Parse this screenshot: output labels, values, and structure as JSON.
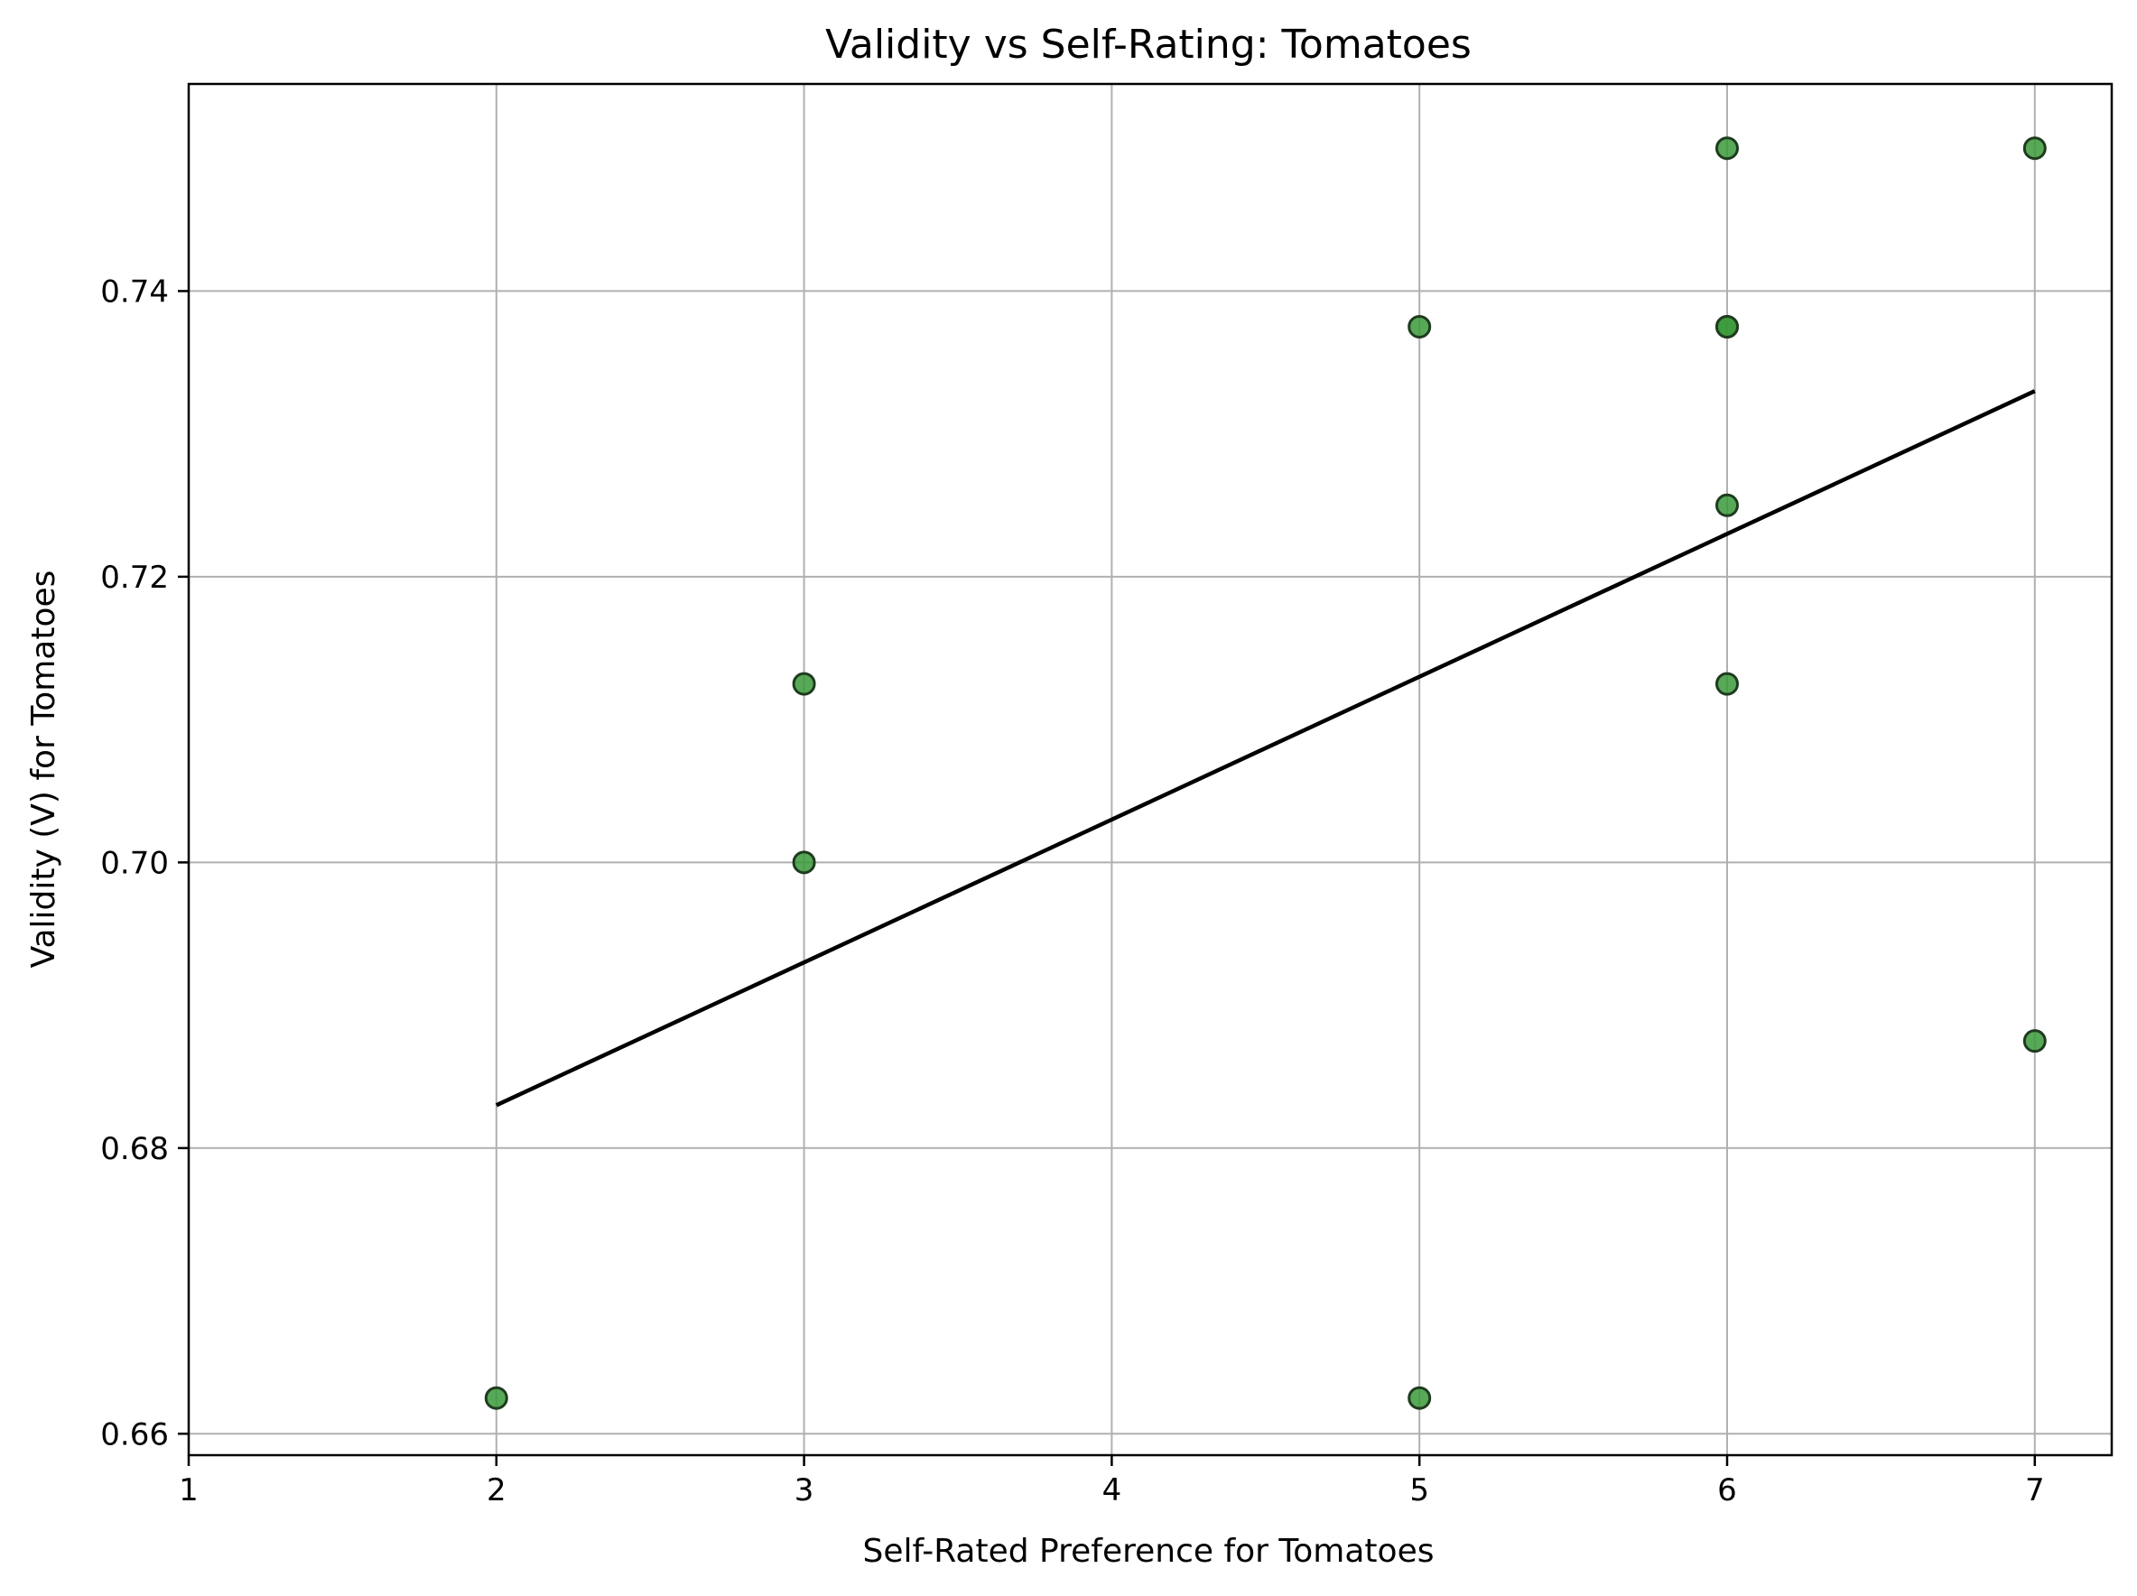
{
  "chart_data": {
    "type": "scatter",
    "title": "Validity vs Self-Rating: Tomatoes",
    "xlabel": "Self-Rated Preference for Tomatoes",
    "ylabel": "Validity (V) for Tomatoes",
    "xlim": [
      1,
      7.25
    ],
    "ylim": [
      0.6585,
      0.7545
    ],
    "xticks": [
      1,
      2,
      3,
      4,
      5,
      6,
      7
    ],
    "xtick_labels": [
      "1",
      "2",
      "3",
      "4",
      "5",
      "6",
      "7"
    ],
    "yticks": [
      0.66,
      0.68,
      0.7,
      0.72,
      0.74
    ],
    "ytick_labels": [
      "0.66",
      "0.68",
      "0.70",
      "0.72",
      "0.74"
    ],
    "grid": true,
    "points": [
      {
        "x": 2,
        "y": 0.6625
      },
      {
        "x": 3,
        "y": 0.7125
      },
      {
        "x": 3,
        "y": 0.7
      },
      {
        "x": 5,
        "y": 0.7375
      },
      {
        "x": 5,
        "y": 0.6625
      },
      {
        "x": 6,
        "y": 0.75
      },
      {
        "x": 6,
        "y": 0.7375
      },
      {
        "x": 6,
        "y": 0.7375
      },
      {
        "x": 6,
        "y": 0.725
      },
      {
        "x": 6,
        "y": 0.7125
      },
      {
        "x": 7,
        "y": 0.75
      },
      {
        "x": 7,
        "y": 0.6875
      }
    ],
    "trendline": {
      "x": [
        2,
        7
      ],
      "y": [
        0.683,
        0.733
      ]
    },
    "colors": {
      "point_fill": "#3a9a3a",
      "point_edge": "#1f3b1f",
      "trendline": "#000000",
      "grid": "#b0b0b0",
      "axes": "#000000"
    }
  }
}
